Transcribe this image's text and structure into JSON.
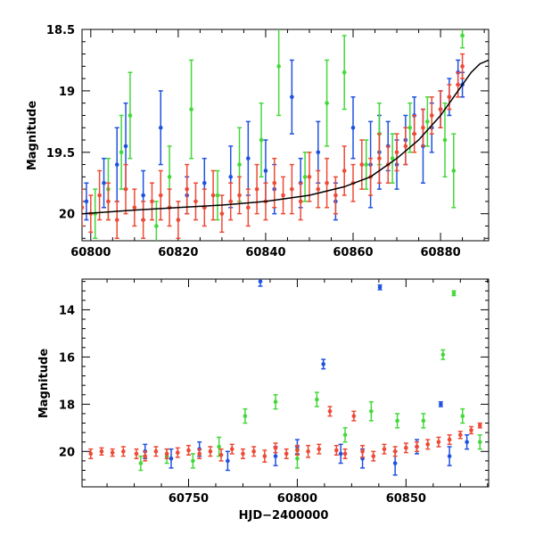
{
  "colors": {
    "blue": "#1f52e0",
    "green": "#44d83a",
    "red": "#ee4a35",
    "fit": "#000000"
  },
  "chart_data": [
    {
      "type": "scatter",
      "panel": "top",
      "ylabel": "Magnitude",
      "xlim": [
        60798,
        60891
      ],
      "ylim": [
        20.22,
        18.5
      ],
      "y_inverted": true,
      "xticks": [
        60800,
        60820,
        60840,
        60860,
        60880
      ],
      "xtick_labels": [
        "60800",
        "60820",
        "60840",
        "60860",
        "60880"
      ],
      "yticks": [
        18.5,
        19,
        19.5,
        20
      ],
      "ytick_labels": [
        "18.5",
        "19",
        "19.5",
        "20"
      ],
      "grid": false,
      "legend": "none",
      "fit_curve": {
        "x": [
          60798,
          60810,
          60820,
          60830,
          60840,
          60850,
          60858,
          60864,
          60870,
          60875,
          60880,
          60884,
          60887,
          60889,
          60891
        ],
        "y": [
          20.0,
          19.97,
          19.95,
          19.93,
          19.9,
          19.85,
          19.78,
          19.7,
          19.55,
          19.4,
          19.2,
          19.0,
          18.85,
          18.78,
          18.75
        ]
      },
      "series": [
        {
          "color": "blue",
          "points": [
            [
              60799,
              19.9,
              0.15
            ],
            [
              60803,
              19.75,
              0.2
            ],
            [
              60806,
              19.6,
              0.3
            ],
            [
              60808,
              19.45,
              0.35
            ],
            [
              60812,
              19.85,
              0.2
            ],
            [
              60816,
              19.3,
              0.3
            ],
            [
              60822,
              19.85,
              0.15
            ],
            [
              60826,
              19.75,
              0.2
            ],
            [
              60832,
              19.7,
              0.25
            ],
            [
              60836,
              19.55,
              0.3
            ],
            [
              60840,
              19.65,
              0.25
            ],
            [
              60842,
              19.8,
              0.2
            ],
            [
              60846,
              19.05,
              0.3
            ],
            [
              60848,
              19.75,
              0.2
            ],
            [
              60852,
              19.5,
              0.25
            ],
            [
              60856,
              19.9,
              0.15
            ],
            [
              60860,
              19.3,
              0.25
            ],
            [
              60864,
              19.6,
              0.35
            ],
            [
              60866,
              19.5,
              0.3
            ],
            [
              60868,
              19.45,
              0.2
            ],
            [
              60870,
              19.6,
              0.2
            ],
            [
              60872,
              19.4,
              0.2
            ],
            [
              60874,
              19.2,
              0.15
            ],
            [
              60876,
              19.45,
              0.3
            ],
            [
              60878,
              19.3,
              0.2
            ],
            [
              60880,
              19.15,
              0.15
            ],
            [
              60882,
              19.05,
              0.15
            ],
            [
              60884,
              18.85,
              0.1
            ],
            [
              60885,
              18.95,
              0.1
            ]
          ]
        },
        {
          "color": "green",
          "points": [
            [
              60801,
              20.0,
              0.2
            ],
            [
              60804,
              19.8,
              0.25
            ],
            [
              60807,
              19.5,
              0.3
            ],
            [
              60809,
              19.2,
              0.35
            ],
            [
              60815,
              20.1,
              0.2
            ],
            [
              60818,
              19.7,
              0.25
            ],
            [
              60823,
              19.15,
              0.4
            ],
            [
              60829,
              19.85,
              0.2
            ],
            [
              60834,
              19.6,
              0.3
            ],
            [
              60839,
              19.4,
              0.3
            ],
            [
              60843,
              18.8,
              0.4
            ],
            [
              60849,
              19.7,
              0.2
            ],
            [
              60854,
              19.1,
              0.35
            ],
            [
              60858,
              18.85,
              0.3
            ],
            [
              60863,
              19.6,
              0.2
            ],
            [
              60866,
              19.35,
              0.25
            ],
            [
              60869,
              19.55,
              0.2
            ],
            [
              60873,
              19.3,
              0.2
            ],
            [
              60877,
              19.25,
              0.2
            ],
            [
              60881,
              19.4,
              0.3
            ],
            [
              60883,
              19.65,
              0.3
            ],
            [
              60885,
              18.55,
              0.1
            ]
          ]
        },
        {
          "color": "red",
          "points": [
            [
              60798,
              19.95,
              0.15
            ],
            [
              60800,
              20.0,
              0.15
            ],
            [
              60802,
              19.85,
              0.2
            ],
            [
              60804,
              19.9,
              0.15
            ],
            [
              60806,
              20.05,
              0.15
            ],
            [
              60808,
              19.8,
              0.2
            ],
            [
              60810,
              19.95,
              0.15
            ],
            [
              60812,
              20.05,
              0.15
            ],
            [
              60814,
              19.9,
              0.15
            ],
            [
              60816,
              19.85,
              0.2
            ],
            [
              60818,
              19.95,
              0.15
            ],
            [
              60820,
              20.05,
              0.15
            ],
            [
              60822,
              19.8,
              0.2
            ],
            [
              60824,
              19.9,
              0.15
            ],
            [
              60826,
              19.95,
              0.15
            ],
            [
              60828,
              19.85,
              0.2
            ],
            [
              60830,
              20.0,
              0.15
            ],
            [
              60832,
              19.9,
              0.15
            ],
            [
              60834,
              19.85,
              0.15
            ],
            [
              60836,
              19.95,
              0.15
            ],
            [
              60838,
              19.8,
              0.2
            ],
            [
              60840,
              19.9,
              0.15
            ],
            [
              60842,
              19.75,
              0.2
            ],
            [
              60844,
              19.85,
              0.15
            ],
            [
              60846,
              19.8,
              0.2
            ],
            [
              60848,
              19.9,
              0.15
            ],
            [
              60850,
              19.7,
              0.2
            ],
            [
              60852,
              19.8,
              0.15
            ],
            [
              60854,
              19.75,
              0.2
            ],
            [
              60856,
              19.85,
              0.15
            ],
            [
              60858,
              19.65,
              0.2
            ],
            [
              60860,
              19.75,
              0.15
            ],
            [
              60862,
              19.6,
              0.2
            ],
            [
              60864,
              19.7,
              0.15
            ],
            [
              60866,
              19.55,
              0.2
            ],
            [
              60868,
              19.6,
              0.15
            ],
            [
              60870,
              19.5,
              0.15
            ],
            [
              60872,
              19.45,
              0.15
            ],
            [
              60874,
              19.35,
              0.15
            ],
            [
              60876,
              19.3,
              0.15
            ],
            [
              60878,
              19.2,
              0.15
            ],
            [
              60880,
              19.15,
              0.15
            ],
            [
              60882,
              19.05,
              0.1
            ],
            [
              60884,
              18.95,
              0.1
            ],
            [
              60885,
              18.8,
              0.1
            ]
          ]
        }
      ]
    },
    {
      "type": "scatter",
      "panel": "bottom",
      "xlabel": "HJD−2400000",
      "ylabel": "Magnitude",
      "xlim": [
        60701,
        60888
      ],
      "ylim": [
        21.5,
        12.7
      ],
      "y_inverted": true,
      "xticks": [
        60750,
        60800,
        60850
      ],
      "xtick_labels": [
        "60750",
        "60800",
        "60850"
      ],
      "yticks": [
        14,
        16,
        18,
        20
      ],
      "ytick_labels": [
        "14",
        "16",
        "18",
        "20"
      ],
      "grid": false,
      "legend": "none",
      "series": [
        {
          "color": "blue",
          "points": [
            [
              60730,
              20.0,
              0.3
            ],
            [
              60742,
              20.3,
              0.4
            ],
            [
              60755,
              19.9,
              0.3
            ],
            [
              60768,
              20.4,
              0.4
            ],
            [
              60783,
              12.8,
              0.2
            ],
            [
              60790,
              20.2,
              0.4
            ],
            [
              60800,
              19.8,
              0.3
            ],
            [
              60812,
              16.3,
              0.2
            ],
            [
              60820,
              20.1,
              0.4
            ],
            [
              60830,
              20.3,
              0.4
            ],
            [
              60838,
              13.05,
              0.1
            ],
            [
              60845,
              20.5,
              0.5
            ],
            [
              60855,
              19.8,
              0.3
            ],
            [
              60866,
              18.0,
              0.1
            ],
            [
              60870,
              20.2,
              0.4
            ],
            [
              60878,
              19.6,
              0.3
            ]
          ]
        },
        {
          "color": "green",
          "points": [
            [
              60728,
              20.5,
              0.3
            ],
            [
              60740,
              20.2,
              0.3
            ],
            [
              60752,
              20.4,
              0.3
            ],
            [
              60764,
              19.8,
              0.4
            ],
            [
              60776,
              18.5,
              0.3
            ],
            [
              60790,
              17.9,
              0.3
            ],
            [
              60800,
              20.3,
              0.4
            ],
            [
              60809,
              17.8,
              0.3
            ],
            [
              60822,
              19.3,
              0.3
            ],
            [
              60834,
              18.3,
              0.4
            ],
            [
              60846,
              18.7,
              0.3
            ],
            [
              60858,
              18.7,
              0.3
            ],
            [
              60867,
              15.9,
              0.2
            ],
            [
              60872,
              13.3,
              0.1
            ],
            [
              60876,
              18.5,
              0.3
            ],
            [
              60884,
              19.6,
              0.3
            ]
          ]
        },
        {
          "color": "red",
          "points": [
            [
              60705,
              20.1,
              0.2
            ],
            [
              60710,
              20.0,
              0.15
            ],
            [
              60715,
              20.05,
              0.15
            ],
            [
              60720,
              20.0,
              0.2
            ],
            [
              60726,
              20.1,
              0.2
            ],
            [
              60730,
              20.2,
              0.2
            ],
            [
              60735,
              20.0,
              0.2
            ],
            [
              60740,
              20.1,
              0.2
            ],
            [
              60745,
              20.05,
              0.2
            ],
            [
              60750,
              19.95,
              0.2
            ],
            [
              60755,
              20.1,
              0.2
            ],
            [
              60760,
              20.0,
              0.2
            ],
            [
              60765,
              20.15,
              0.25
            ],
            [
              60770,
              19.9,
              0.2
            ],
            [
              60775,
              20.1,
              0.2
            ],
            [
              60780,
              20.0,
              0.2
            ],
            [
              60785,
              20.2,
              0.25
            ],
            [
              60790,
              19.85,
              0.2
            ],
            [
              60795,
              20.1,
              0.2
            ],
            [
              60800,
              19.95,
              0.2
            ],
            [
              60805,
              20.0,
              0.25
            ],
            [
              60810,
              19.9,
              0.2
            ],
            [
              60815,
              18.3,
              0.2
            ],
            [
              60818,
              19.95,
              0.2
            ],
            [
              60822,
              20.1,
              0.2
            ],
            [
              60826,
              18.5,
              0.2
            ],
            [
              60830,
              20.0,
              0.25
            ],
            [
              60835,
              20.2,
              0.2
            ],
            [
              60840,
              19.9,
              0.2
            ],
            [
              60845,
              20.0,
              0.2
            ],
            [
              60850,
              19.85,
              0.2
            ],
            [
              60855,
              19.8,
              0.2
            ],
            [
              60860,
              19.7,
              0.2
            ],
            [
              60865,
              19.6,
              0.2
            ],
            [
              60870,
              19.5,
              0.2
            ],
            [
              60875,
              19.3,
              0.15
            ],
            [
              60880,
              19.1,
              0.15
            ],
            [
              60884,
              18.9,
              0.1
            ]
          ]
        }
      ]
    }
  ]
}
